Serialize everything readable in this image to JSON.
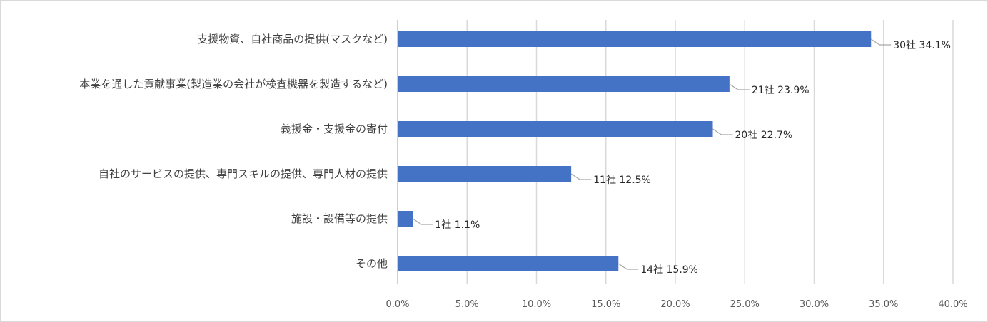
{
  "chart_data": {
    "type": "bar",
    "orientation": "horizontal",
    "title": "",
    "xlabel": "",
    "ylabel": "",
    "xlim": [
      0,
      40
    ],
    "grid": true,
    "bar_color": "#4472C4",
    "categories": [
      "支援物資、自社商品の提供(マスクなど)",
      "本業を通した貢献事業(製造業の会社が検査機器を製造するなど)",
      "義援金・支援金の寄付",
      "自社のサービスの提供、専門スキルの提供、専門人材の提供",
      "施設・設備等の提供",
      "その他"
    ],
    "values": [
      34.1,
      23.9,
      22.7,
      12.5,
      1.1,
      15.9
    ],
    "counts": [
      30,
      21,
      20,
      11,
      1,
      14
    ],
    "data_labels": [
      "30社 34.1%",
      "21社 23.9%",
      "20社 22.7%",
      "11社 12.5%",
      "1社 1.1%",
      "14社 15.9%"
    ],
    "x_ticks": [
      "0.0%",
      "5.0%",
      "10.0%",
      "15.0%",
      "20.0%",
      "25.0%",
      "30.0%",
      "35.0%",
      "40.0%"
    ]
  }
}
